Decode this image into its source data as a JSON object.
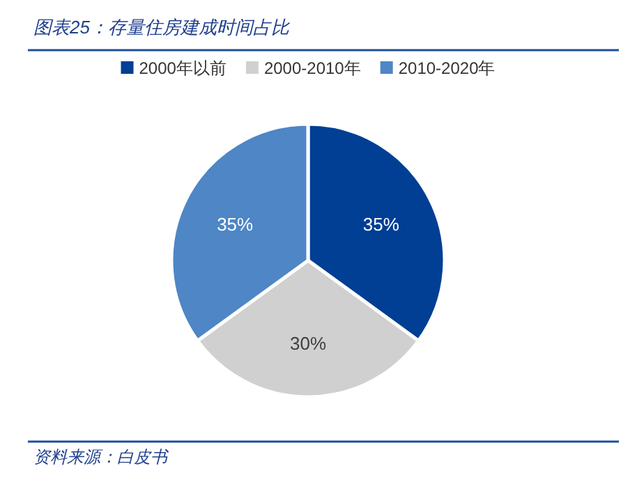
{
  "chart_data": {
    "type": "pie",
    "title": "图表25：存量住房建成时间占比",
    "categories": [
      "2000年以前",
      "2000-2010年",
      "2010-2020年"
    ],
    "values": [
      35,
      30,
      35
    ],
    "colors": [
      "#003f94",
      "#d0d0d0",
      "#4e86c6"
    ],
    "legend": "top",
    "value_labels": [
      "35%",
      "30%",
      "35%"
    ],
    "annotations": [
      "资料来源：白皮书"
    ]
  }
}
